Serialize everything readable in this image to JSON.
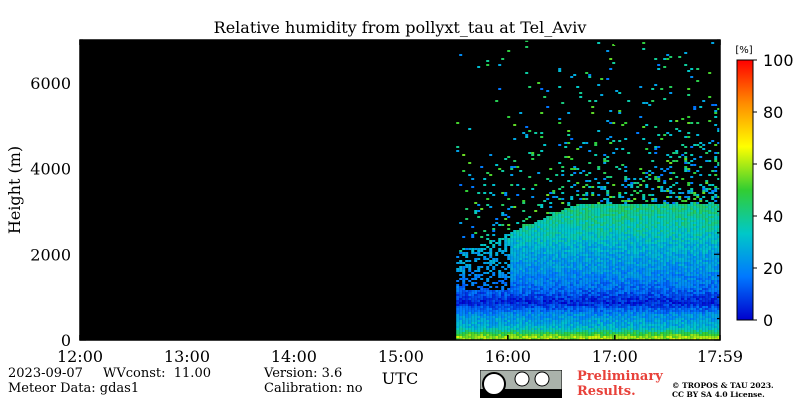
{
  "chart_data": {
    "type": "heatmap",
    "title": "Relative humidity from pollyxt_tau at Tel_Aviv",
    "ylabel": "Height (m)",
    "xlabel": "UTC",
    "x_ticks": [
      "12:00",
      "13:00",
      "14:00",
      "15:00",
      "16:00",
      "17:00",
      "17:59"
    ],
    "x_range": [
      "12:00",
      "17:59"
    ],
    "y_ticks": [
      0,
      2000,
      4000,
      6000
    ],
    "ylim": [
      0,
      7000
    ],
    "colorbar": {
      "unit": "[%]",
      "ticks": [
        0,
        20,
        40,
        60,
        80,
        100
      ],
      "range": [
        0,
        100
      ],
      "colors": [
        "#0000cd",
        "#0078ff",
        "#00c8c8",
        "#32cd32",
        "#ffff00",
        "#ff8c00",
        "#ff0000"
      ]
    },
    "data_start": "15:31",
    "background_color": "#000000",
    "profile": [
      {
        "height": 100,
        "rh": 58
      },
      {
        "height": 300,
        "rh": 30
      },
      {
        "height": 600,
        "rh": 22
      },
      {
        "height": 900,
        "rh": 5
      },
      {
        "height": 1200,
        "rh": 15
      },
      {
        "height": 1600,
        "rh": 22
      },
      {
        "height": 2000,
        "rh": 26
      },
      {
        "height": 2500,
        "rh": 34
      },
      {
        "height": 3000,
        "rh": 40
      }
    ]
  },
  "footer": {
    "date": "2023-09-07",
    "wvconst": "WVconst:  11.00",
    "meteor": "Meteor Data: gdas1",
    "version": "Version: 3.6",
    "calibration": "Calibration: no",
    "preliminary_line1": "Preliminary",
    "preliminary_line2": "Results.",
    "copyright_line1": "© TROPOS & TAU 2023.",
    "copyright_line2": "CC BY SA 4.0 License.",
    "license_badge": "cc-by-sa-badge"
  }
}
